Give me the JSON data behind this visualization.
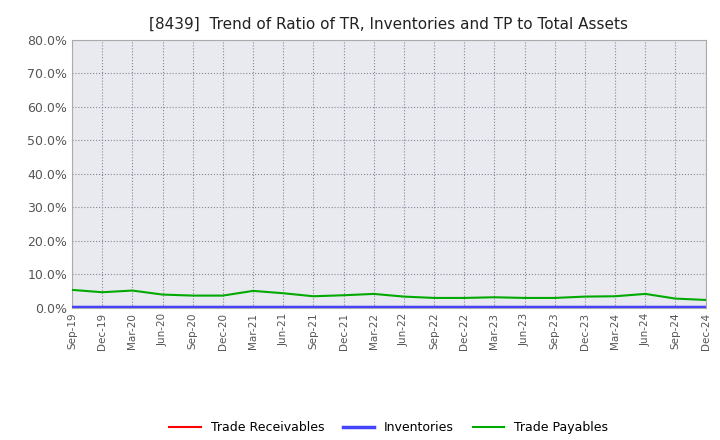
{
  "title": "[8439]  Trend of Ratio of TR, Inventories and TP to Total Assets",
  "ylim": [
    0.0,
    0.8
  ],
  "yticks": [
    0.0,
    0.1,
    0.2,
    0.3,
    0.4,
    0.5,
    0.6,
    0.7,
    0.8
  ],
  "x_labels": [
    "Sep-19",
    "Dec-19",
    "Mar-20",
    "Jun-20",
    "Sep-20",
    "Dec-20",
    "Mar-21",
    "Jun-21",
    "Sep-21",
    "Dec-21",
    "Mar-22",
    "Jun-22",
    "Sep-22",
    "Dec-22",
    "Mar-23",
    "Jun-23",
    "Sep-23",
    "Dec-23",
    "Mar-24",
    "Jun-24",
    "Sep-24",
    "Dec-24"
  ],
  "trade_receivables": [
    0.003,
    0.003,
    0.003,
    0.003,
    0.003,
    0.003,
    0.003,
    0.003,
    0.003,
    0.003,
    0.003,
    0.003,
    0.003,
    0.003,
    0.003,
    0.003,
    0.003,
    0.003,
    0.003,
    0.003,
    0.003,
    0.003
  ],
  "inventories": [
    0.002,
    0.002,
    0.002,
    0.002,
    0.002,
    0.002,
    0.002,
    0.002,
    0.002,
    0.002,
    0.002,
    0.002,
    0.002,
    0.002,
    0.002,
    0.002,
    0.002,
    0.002,
    0.002,
    0.002,
    0.002,
    0.002
  ],
  "trade_payables": [
    0.054,
    0.047,
    0.052,
    0.04,
    0.037,
    0.037,
    0.051,
    0.044,
    0.035,
    0.038,
    0.042,
    0.034,
    0.03,
    0.03,
    0.032,
    0.03,
    0.03,
    0.034,
    0.035,
    0.042,
    0.028,
    0.024
  ],
  "tr_color": "#ff0000",
  "inv_color": "#4444ff",
  "tp_color": "#00aa00",
  "background_color": "#ffffff",
  "plot_bg_color": "#e8eaf0",
  "grid_color": "#888899",
  "title_fontsize": 11,
  "tick_color": "#555555",
  "legend_labels": [
    "Trade Receivables",
    "Inventories",
    "Trade Payables"
  ]
}
